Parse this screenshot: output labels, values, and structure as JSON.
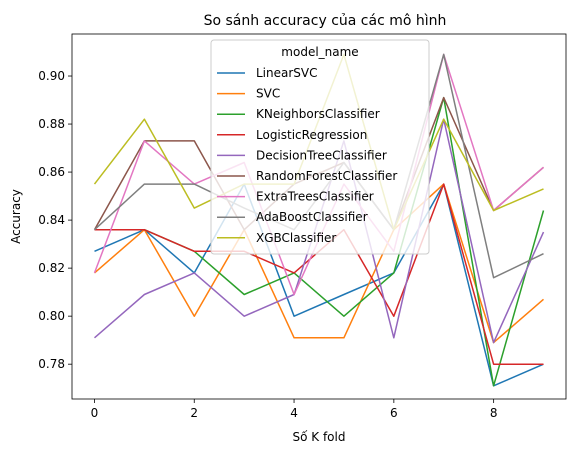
{
  "chart_data": {
    "type": "line",
    "title": "So sánh accuracy của các mô hình",
    "xlabel": "Số K fold",
    "ylabel": "Accuracy",
    "xlim": [
      -0.45,
      9.45
    ],
    "ylim": [
      0.7655,
      0.9175
    ],
    "xticks": [
      0,
      2,
      4,
      6,
      8
    ],
    "yticks": [
      0.78,
      0.8,
      0.82,
      0.84,
      0.86,
      0.88,
      0.9
    ],
    "grid": false,
    "legend": {
      "title": "model_name",
      "placement": "upper-center"
    },
    "x": [
      0,
      1,
      2,
      3,
      4,
      5,
      6,
      7,
      8,
      9
    ],
    "series": [
      {
        "name": "LinearSVC",
        "color": "#1f77b4",
        "values": [
          0.827,
          0.836,
          0.818,
          0.855,
          0.8,
          0.809,
          0.818,
          0.855,
          0.771,
          0.78
        ]
      },
      {
        "name": "SVC",
        "color": "#ff7f0e",
        "values": [
          0.818,
          0.836,
          0.8,
          0.836,
          0.791,
          0.791,
          0.836,
          0.855,
          0.789,
          0.807
        ]
      },
      {
        "name": "KNeighborsClassifier",
        "color": "#2ca02c",
        "values": [
          0.836,
          0.836,
          0.827,
          0.809,
          0.818,
          0.8,
          0.818,
          0.891,
          0.771,
          0.844
        ]
      },
      {
        "name": "LogisticRegression",
        "color": "#d62728",
        "values": [
          0.836,
          0.836,
          0.827,
          0.827,
          0.818,
          0.836,
          0.8,
          0.855,
          0.78,
          0.78
        ]
      },
      {
        "name": "DecisionTreeClassifier",
        "color": "#9467bd",
        "values": [
          0.791,
          0.809,
          0.818,
          0.8,
          0.809,
          0.873,
          0.791,
          0.882,
          0.789,
          0.835
        ]
      },
      {
        "name": "RandomForestClassifier",
        "color": "#8c564b",
        "values": [
          0.836,
          0.873,
          0.873,
          0.836,
          0.855,
          0.864,
          0.836,
          0.891,
          0.844,
          0.862
        ]
      },
      {
        "name": "ExtraTreesClassifier",
        "color": "#e377c2",
        "values": [
          0.818,
          0.873,
          0.855,
          0.864,
          0.809,
          0.855,
          0.827,
          0.909,
          0.844,
          0.862
        ]
      },
      {
        "name": "AdaBoostClassifier",
        "color": "#7f7f7f",
        "values": [
          0.836,
          0.855,
          0.855,
          0.845,
          0.836,
          0.864,
          0.836,
          0.909,
          0.816,
          0.826
        ]
      },
      {
        "name": "XGBClassifier",
        "color": "#bcbd22",
        "values": [
          0.855,
          0.882,
          0.845,
          0.855,
          0.855,
          0.909,
          0.836,
          0.882,
          0.844,
          0.853
        ]
      }
    ]
  }
}
